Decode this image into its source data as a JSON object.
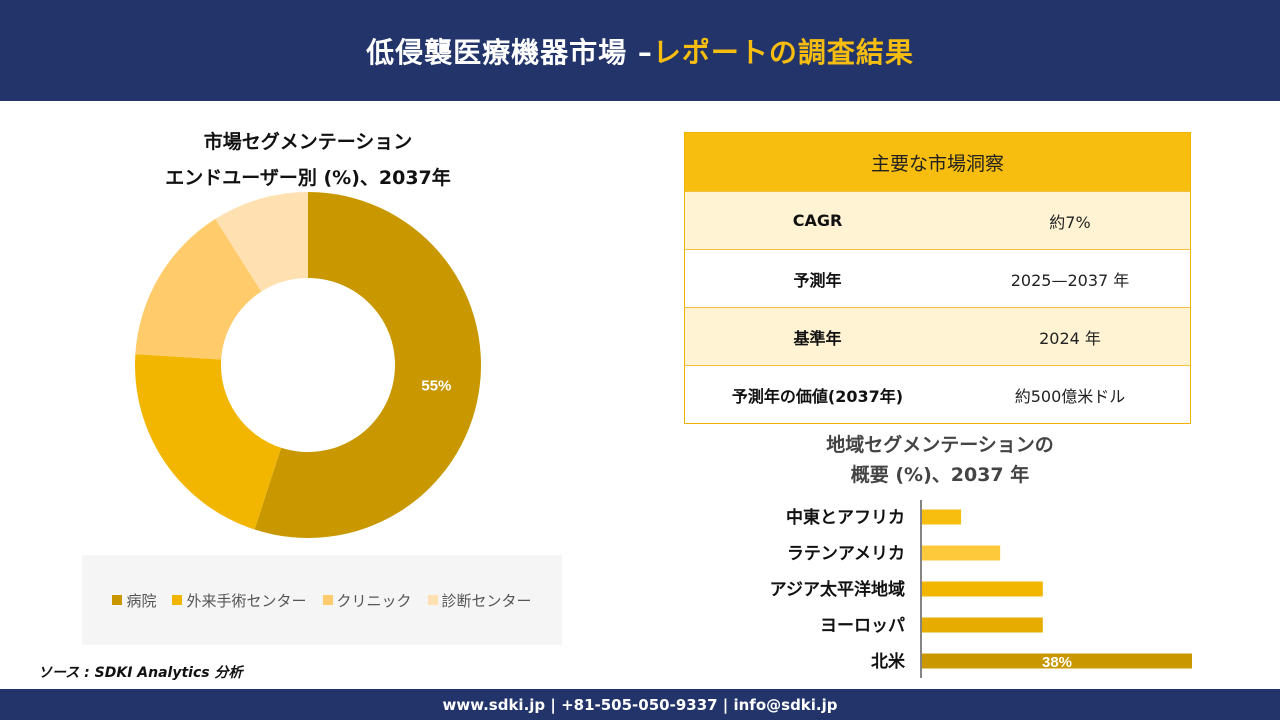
{
  "header": {
    "title_main": "低侵襲医療機器市場 –",
    "title_accent": "レポートの調査結果"
  },
  "colors": {
    "navy": "#223469",
    "gold": "#f7bd0f",
    "hospital": "#c99800",
    "ambulatory": "#f2b600",
    "clinic": "#ffcb6b",
    "diagnostic": "#ffe0b0"
  },
  "pie": {
    "title_line1": "市場セグメンテーション",
    "title_line2": "エンドユーザー別 (%)、2037年"
  },
  "legend": [
    "病院",
    "外来手術センター",
    "クリニック",
    "診断センター"
  ],
  "source": "ソース : SDKI Analytics 分析",
  "insights": {
    "heading": "主要な市場洞察",
    "rows": [
      {
        "key": "CAGR",
        "value": "約7%"
      },
      {
        "key": "予測年",
        "value": "2025—2037 年"
      },
      {
        "key": "基準年",
        "value": "2024 年"
      },
      {
        "key": "予測年の価値(2037年)",
        "value": "約500億米ドル"
      }
    ]
  },
  "bars": {
    "title_line1": "地域セグメンテーションの",
    "title_line2": "概要 (%)、2037 年"
  },
  "chart_data": [
    {
      "type": "pie",
      "title": "市場セグメンテーション エンドユーザー別 (%)、2037年",
      "categories": [
        "病院",
        "外来手術センター",
        "クリニック",
        "診断センター"
      ],
      "values": [
        55,
        21,
        15,
        9
      ],
      "data_labels": [
        "55%",
        "",
        "",
        ""
      ],
      "colors": [
        "#c99800",
        "#f2b600",
        "#ffcb6b",
        "#ffe0b0"
      ],
      "donut": true,
      "legend_position": "bottom"
    },
    {
      "type": "bar",
      "orientation": "horizontal",
      "title": "地域セグメンテーションの 概要 (%)、2037 年",
      "categories": [
        "中東とアフリカ",
        "ラテンアメリカ",
        "アジア太平洋地域",
        "ヨーロッパ",
        "北米"
      ],
      "values": [
        5.5,
        11,
        17,
        17,
        38
      ],
      "data_labels": [
        "",
        "",
        "",
        "",
        "38%"
      ],
      "colors": [
        "#f7bd0f",
        "#ffc93c",
        "#f2b600",
        "#e6ad00",
        "#c99800"
      ],
      "xlim": [
        0,
        38
      ]
    }
  ],
  "footer": {
    "contact": "www.sdki.jp | +81-505-050-9337 | info@sdki.jp"
  }
}
